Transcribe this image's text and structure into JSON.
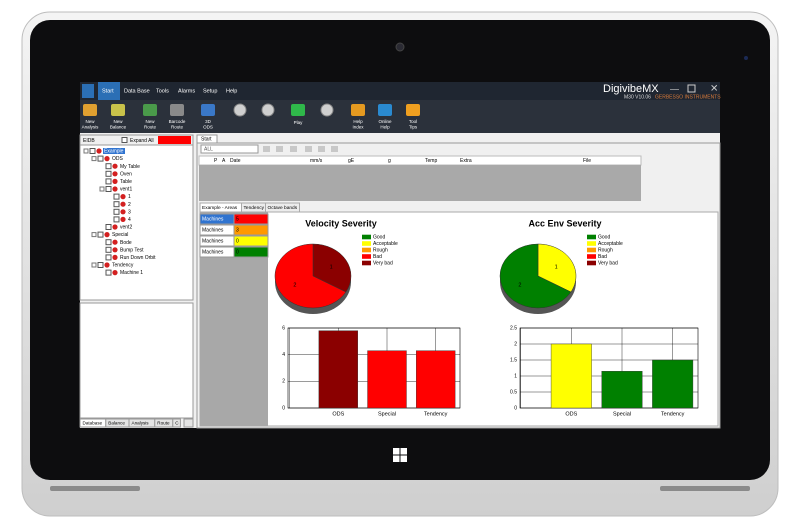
{
  "app": {
    "brand": "DigivibeMX",
    "version": "M30 V10.06",
    "company": "GERBESSO INSTRUMENTS"
  },
  "menu": [
    "Start",
    "Data Base",
    "Tools",
    "Alarms",
    "Setup",
    "Help"
  ],
  "toolbar": [
    "New Analysis",
    "New Balance",
    "New Route",
    "Barcode Route",
    "3D ODS",
    "Play",
    "Help Index",
    "Online Help",
    "Tool Tips"
  ],
  "tree": {
    "header": "EIDB",
    "expand": "Expand All",
    "items": [
      {
        "label": "Example",
        "depth": 0
      },
      {
        "label": "ODS",
        "depth": 1
      },
      {
        "label": "My Table",
        "depth": 2
      },
      {
        "label": "Oven",
        "depth": 2
      },
      {
        "label": "Table",
        "depth": 2
      },
      {
        "label": "vent1",
        "depth": 2
      },
      {
        "label": "1",
        "depth": 3
      },
      {
        "label": "2",
        "depth": 3
      },
      {
        "label": "3",
        "depth": 3
      },
      {
        "label": "4",
        "depth": 3
      },
      {
        "label": "vent2",
        "depth": 2
      },
      {
        "label": "Special",
        "depth": 1
      },
      {
        "label": "Bode",
        "depth": 2
      },
      {
        "label": "Bump Test",
        "depth": 2
      },
      {
        "label": "Run Down Orbit",
        "depth": 2
      },
      {
        "label": "Tendency",
        "depth": 1
      },
      {
        "label": "Machine 1",
        "depth": 2
      }
    ]
  },
  "bottom_tabs": [
    "Database",
    "Balance",
    "Analysis",
    "Route",
    "C"
  ],
  "doc_tab": "Start",
  "filter": "ALL",
  "columns": [
    "P",
    "A",
    "Date",
    "mm/s",
    "gE",
    "g",
    "Temp",
    "Extra",
    "File"
  ],
  "view_tabs": [
    "Example - Areas",
    "Tendency",
    "Octave bands"
  ],
  "areas": [
    {
      "name": "Machines",
      "count": 5,
      "color": "#ff0000"
    },
    {
      "name": "Machines",
      "count": 3,
      "color": "#ff9900"
    },
    {
      "name": "Machines",
      "count": 0,
      "color": "#ffff00"
    },
    {
      "name": "Machines",
      "count": 0,
      "color": "#008000"
    }
  ],
  "legend": [
    {
      "label": "Good",
      "color": "#008000"
    },
    {
      "label": "Acceptable",
      "color": "#ffff00"
    },
    {
      "label": "Rough",
      "color": "#ff9900"
    },
    {
      "label": "Bad",
      "color": "#ff0000"
    },
    {
      "label": "Very bad",
      "color": "#8b0000"
    }
  ],
  "charts": [
    {
      "title": "Velocity Severity",
      "pie": [
        {
          "value": 1,
          "color": "#8b0000"
        },
        {
          "value": 2,
          "color": "#ff0000"
        }
      ],
      "bars": {
        "categories": [
          "ODS",
          "Special",
          "Tendency"
        ],
        "values": [
          5.8,
          4.3,
          4.3
        ],
        "colors": [
          "#8b0000",
          "#ff0000",
          "#ff0000"
        ],
        "ylim": [
          0,
          6
        ],
        "yticks": [
          0,
          2,
          4,
          6
        ]
      }
    },
    {
      "title": "Acc Env Severity",
      "pie": [
        {
          "value": 1,
          "color": "#ffff00"
        },
        {
          "value": 2,
          "color": "#008000"
        }
      ],
      "bars": {
        "categories": [
          "ODS",
          "Special",
          "Tendency"
        ],
        "values": [
          2.0,
          1.15,
          1.5
        ],
        "colors": [
          "#ffff00",
          "#008000",
          "#008000"
        ],
        "ylim": [
          0,
          2.5
        ],
        "yticks": [
          0,
          0.5,
          1,
          1.5,
          2,
          2.5
        ]
      }
    }
  ]
}
